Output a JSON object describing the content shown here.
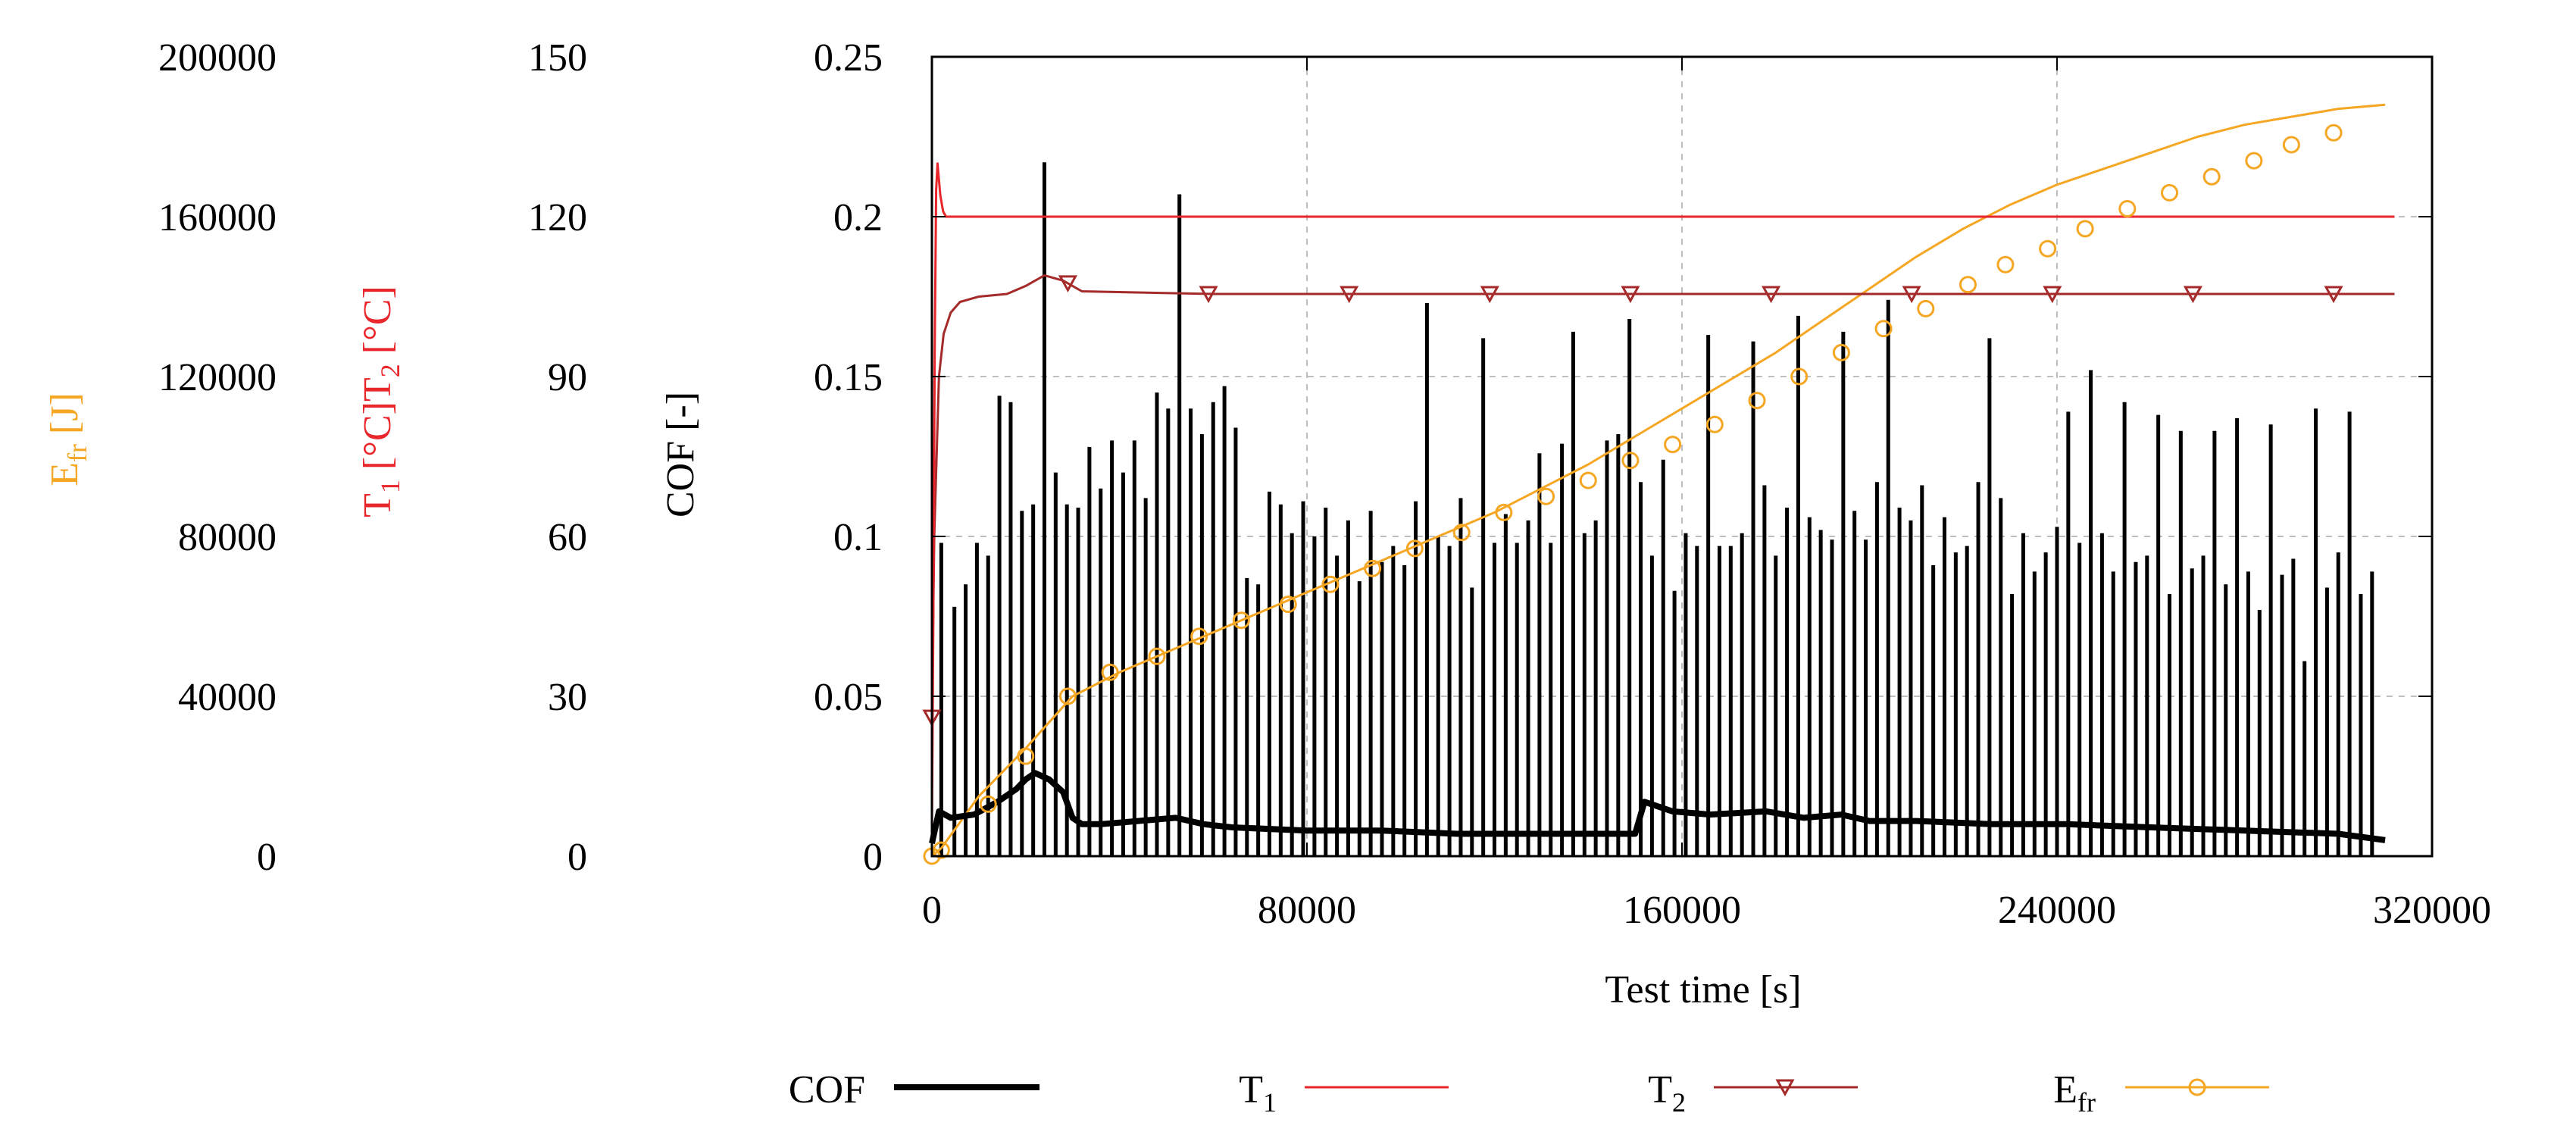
{
  "chart_data": {
    "type": "line",
    "xlabel": "Test time [s]",
    "x_ticks": [
      "0",
      "80000",
      "160000",
      "240000",
      "320000"
    ],
    "xlim": [
      0,
      320000
    ],
    "axes": [
      {
        "id": "efr",
        "label_main": "E",
        "label_sub": "fr",
        "label_unit": " [J]",
        "color": "#f5a623",
        "ylim": [
          0,
          200000
        ],
        "ticks": [
          "0",
          "40000",
          "80000",
          "120000",
          "160000",
          "200000"
        ]
      },
      {
        "id": "temp",
        "label_t1_main": "T",
        "label_t1_sub": "1",
        "label_t1_unit": " [°C]",
        "label_t2_main": "T",
        "label_t2_sub": "2",
        "label_t2_unit": " [°C]",
        "color": "#e8262b",
        "ylim": [
          0,
          150
        ],
        "ticks": [
          "0",
          "30",
          "60",
          "90",
          "120",
          "150"
        ]
      },
      {
        "id": "cof",
        "label": "COF [-]",
        "color": "#000000",
        "ylim": [
          0,
          0.25
        ],
        "ticks": [
          "0",
          "0.05",
          "0.1",
          "0.15",
          "0.2",
          "0.25"
        ]
      }
    ],
    "series": [
      {
        "name": "COF",
        "axis": "cof",
        "color": "#000000",
        "style": "thick line with vertical spikes",
        "x": [
          0,
          1500,
          4000,
          9000,
          14000,
          18000,
          20000,
          22000,
          25000,
          28000,
          30000,
          32000,
          36000,
          44000,
          52000,
          58000,
          64000,
          80000,
          96000,
          112000,
          128000,
          150000,
          152000,
          158000,
          166000,
          178000,
          186000,
          194000,
          200000,
          210000,
          226000,
          242000,
          260000,
          280000,
          300000,
          310000
        ],
        "y": [
          0.004,
          0.014,
          0.012,
          0.013,
          0.017,
          0.021,
          0.024,
          0.026,
          0.024,
          0.02,
          0.012,
          0.01,
          0.01,
          0.011,
          0.012,
          0.01,
          0.009,
          0.008,
          0.008,
          0.007,
          0.007,
          0.007,
          0.017,
          0.014,
          0.013,
          0.014,
          0.012,
          0.013,
          0.011,
          0.011,
          0.01,
          0.01,
          0.009,
          0.008,
          0.007,
          0.005
        ],
        "spikes": {
          "x": [
            2000,
            4800,
            7200,
            9600,
            12000,
            14400,
            16800,
            19200,
            21600,
            24000,
            26400,
            28800,
            31200,
            33600,
            36000,
            38400,
            40800,
            43200,
            45600,
            48000,
            50400,
            52800,
            55200,
            57600,
            60000,
            62400,
            64800,
            67200,
            69600,
            72000,
            74400,
            76800,
            79200,
            81600,
            84000,
            86400,
            88800,
            91200,
            93600,
            96000,
            98400,
            100800,
            103200,
            105600,
            108000,
            110400,
            112800,
            115200,
            117600,
            120000,
            122400,
            124800,
            127200,
            129600,
            132000,
            134400,
            136800,
            139200,
            141600,
            144000,
            146400,
            148800,
            151200,
            153600,
            156000,
            158400,
            160800,
            163200,
            165600,
            168000,
            170400,
            172800,
            175200,
            177600,
            180000,
            182400,
            184800,
            187200,
            189600,
            192000,
            194400,
            196800,
            199200,
            201600,
            204000,
            206400,
            208800,
            211200,
            213600,
            216000,
            218400,
            220800,
            223200,
            225600,
            228000,
            230400,
            232800,
            235200,
            237600,
            240000,
            242400,
            244800,
            247200,
            249600,
            252000,
            254400,
            256800,
            259200,
            261600,
            264000,
            266400,
            268800,
            271200,
            273600,
            276000,
            278400,
            280800,
            283200,
            285600,
            288000,
            290400,
            292800,
            295200,
            297600,
            300000,
            302400,
            304800,
            307200
          ],
          "y": [
            0.098,
            0.078,
            0.085,
            0.098,
            0.094,
            0.144,
            0.142,
            0.108,
            0.11,
            0.217,
            0.12,
            0.11,
            0.109,
            0.128,
            0.115,
            0.13,
            0.12,
            0.13,
            0.112,
            0.145,
            0.14,
            0.207,
            0.14,
            0.132,
            0.142,
            0.147,
            0.134,
            0.087,
            0.085,
            0.114,
            0.11,
            0.101,
            0.111,
            0.1,
            0.109,
            0.094,
            0.105,
            0.086,
            0.108,
            0.092,
            0.097,
            0.091,
            0.111,
            0.173,
            0.1,
            0.097,
            0.112,
            0.084,
            0.162,
            0.098,
            0.107,
            0.098,
            0.105,
            0.126,
            0.098,
            0.129,
            0.164,
            0.101,
            0.105,
            0.13,
            0.132,
            0.168,
            0.117,
            0.094,
            0.124,
            0.083,
            0.101,
            0.097,
            0.163,
            0.097,
            0.097,
            0.101,
            0.161,
            0.116,
            0.094,
            0.109,
            0.169,
            0.106,
            0.102,
            0.099,
            0.164,
            0.108,
            0.099,
            0.117,
            0.174,
            0.109,
            0.105,
            0.116,
            0.091,
            0.106,
            0.095,
            0.097,
            0.117,
            0.162,
            0.112,
            0.082,
            0.101,
            0.089,
            0.095,
            0.103,
            0.139,
            0.098,
            0.152,
            0.101,
            0.089,
            0.142,
            0.092,
            0.094,
            0.138,
            0.082,
            0.133,
            0.09,
            0.094,
            0.133,
            0.085,
            0.137,
            0.089,
            0.077,
            0.135,
            0.088,
            0.093,
            0.061,
            0.14,
            0.084,
            0.095,
            0.139,
            0.082,
            0.089
          ]
        }
      },
      {
        "name": "T1",
        "name_main": "T",
        "name_sub": "1",
        "axis": "temp",
        "color": "#e8262b",
        "x": [
          0,
          300,
          600,
          900,
          1200,
          1800,
          2400,
          3000,
          10000,
          50000,
          100000,
          150000,
          200000,
          250000,
          300000,
          312000
        ],
        "y": [
          5,
          45,
          95,
          125,
          130,
          124,
          121,
          120,
          120,
          120,
          120,
          120,
          120,
          120,
          120,
          120
        ]
      },
      {
        "name": "T2",
        "name_main": "T",
        "name_sub": "2",
        "axis": "temp",
        "color": "#a52a2a",
        "marker": "triangle-down",
        "x": [
          0,
          500,
          1500,
          2500,
          4000,
          6000,
          10000,
          16000,
          20000,
          24000,
          28000,
          32000,
          60000,
          100000,
          150000,
          200000,
          250000,
          300000,
          312000
        ],
        "y": [
          26,
          60,
          90,
          98,
          102,
          104,
          105,
          105.5,
          107,
          109,
          108,
          106,
          105.5,
          105.5,
          105.5,
          105.5,
          105.5,
          105.5,
          105.5
        ],
        "marker_x": [
          0,
          29000,
          59000,
          89000,
          119000,
          149000,
          179000,
          209000,
          239000,
          269000,
          299000
        ],
        "marker_y": [
          26,
          107.5,
          105.5,
          105.5,
          105.5,
          105.5,
          105.5,
          105.5,
          105.5,
          105.5,
          105.5
        ]
      },
      {
        "name": "Efr",
        "name_main": "E",
        "name_sub": "fr",
        "axis": "efr",
        "color": "#f5a623",
        "marker": "circle",
        "x": [
          0,
          2000,
          10000,
          20000,
          30000,
          40000,
          50000,
          60000,
          70000,
          80000,
          90000,
          100000,
          110000,
          120000,
          130000,
          140000,
          150000,
          160000,
          170000,
          180000,
          190000,
          200000,
          210000,
          220000,
          230000,
          240000,
          250000,
          260000,
          270000,
          280000,
          290000,
          300000,
          310000
        ],
        "y": [
          0,
          2000,
          15000,
          27000,
          40000,
          46000,
          51000,
          56000,
          61000,
          66000,
          71000,
          76000,
          81000,
          86000,
          92000,
          98000,
          105000,
          112000,
          119000,
          126000,
          134000,
          142000,
          150000,
          157000,
          163000,
          168000,
          172000,
          176000,
          180000,
          183000,
          185000,
          187000,
          188000
        ],
        "marker_x": [
          0,
          2000,
          12000,
          20000,
          29000,
          38000,
          48000,
          57000,
          66000,
          76000,
          85000,
          94000,
          103000,
          113000,
          122000,
          131000,
          140000,
          149000,
          158000,
          167000,
          176000,
          185000,
          194000,
          203000,
          212000,
          221000,
          229000,
          238000,
          246000,
          255000,
          264000,
          273000,
          282000,
          290000,
          299000
        ],
        "marker_y": [
          0,
          1500,
          13000,
          25000,
          40000,
          46000,
          50000,
          55000,
          59000,
          63000,
          68000,
          72000,
          77000,
          81000,
          86000,
          90000,
          94000,
          99000,
          103000,
          108000,
          114000,
          120000,
          126000,
          132000,
          137000,
          143000,
          148000,
          152000,
          157000,
          162000,
          166000,
          170000,
          174000,
          178000,
          181000
        ]
      }
    ],
    "legend": {
      "placement": "bottom",
      "entries": [
        {
          "main": "COF",
          "sub": "",
          "series": "COF"
        },
        {
          "main": "T",
          "sub": "1",
          "series": "T1"
        },
        {
          "main": "T",
          "sub": "2",
          "series": "T2"
        },
        {
          "main": "E",
          "sub": "fr",
          "series": "Efr"
        }
      ]
    },
    "grid": true
  }
}
